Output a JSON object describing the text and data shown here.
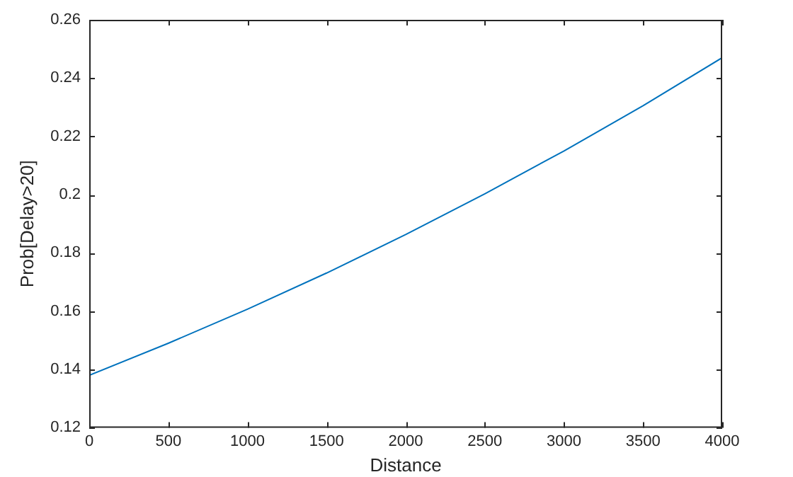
{
  "chart_data": {
    "type": "line",
    "xlabel": "Distance",
    "ylabel": "Prob[Delay>20]",
    "x": [
      0,
      500,
      1000,
      1500,
      2000,
      2500,
      3000,
      3500,
      4000
    ],
    "series": [
      {
        "color": "#0072bd",
        "values": [
          0.138,
          0.149,
          0.1607,
          0.1731,
          0.1863,
          0.2003,
          0.215,
          0.2305,
          0.247
        ]
      }
    ],
    "xlim": [
      0,
      4000
    ],
    "xticks": [
      0,
      500,
      1000,
      1500,
      2000,
      2500,
      3000,
      3500,
      4000
    ],
    "ylim": [
      0.12,
      0.26
    ],
    "yticks": [
      0.12,
      0.14,
      0.16,
      0.18,
      0.2,
      0.22,
      0.24,
      0.26
    ],
    "grid": false,
    "legend": false,
    "marker": "none",
    "line_style": "solid"
  }
}
